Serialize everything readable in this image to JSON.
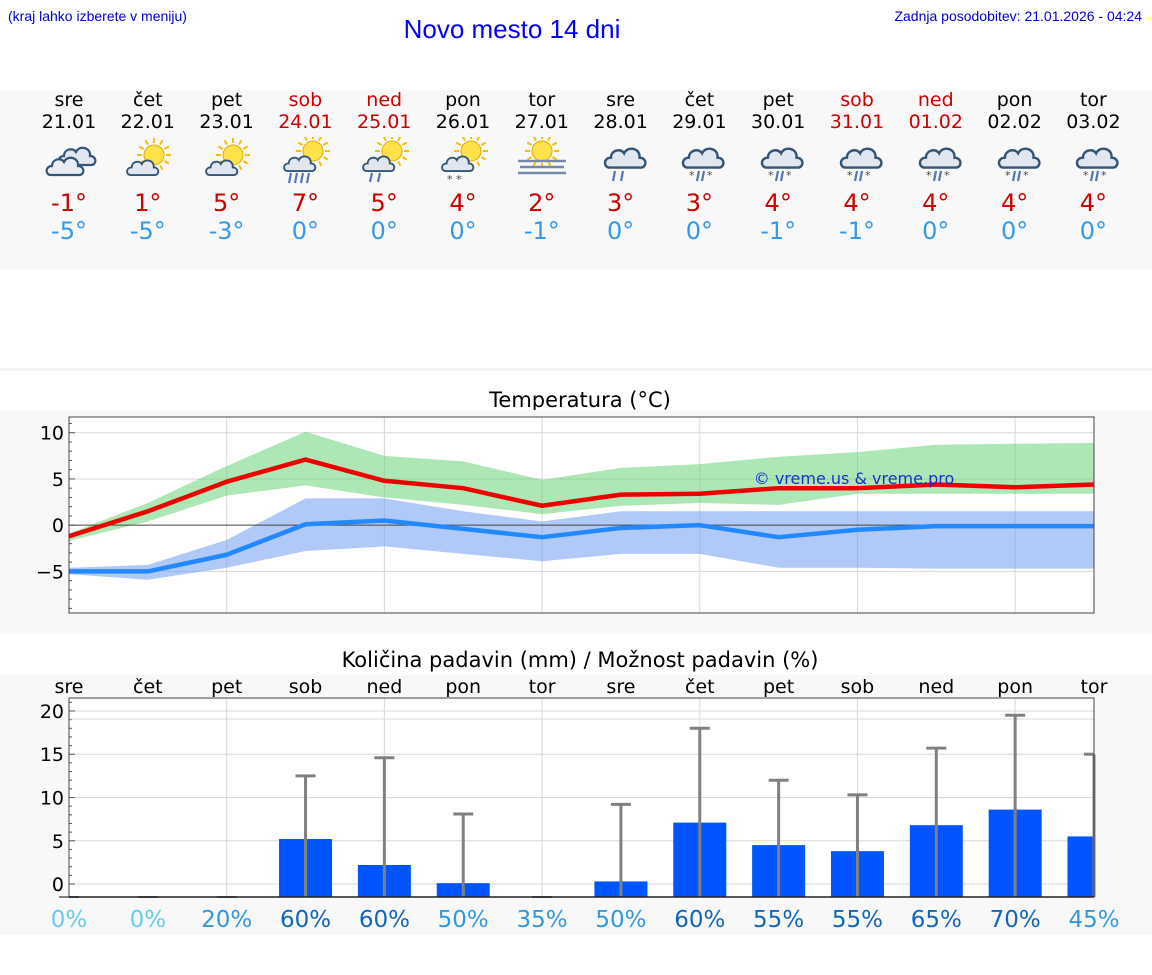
{
  "header": {
    "note": "(kraj lahko izberete v meniju)",
    "title": "Novo mesto 14 dni",
    "update": "Zadnja posodobitev: 21.01.2026 - 04:24"
  },
  "days": [
    {
      "name": "sre",
      "date": "21.01",
      "weekend": false,
      "icon": "cloudy",
      "tmax": "-1°",
      "tmin": "-5°"
    },
    {
      "name": "čet",
      "date": "22.01",
      "weekend": false,
      "icon": "partly-sunny",
      "tmax": "1°",
      "tmin": "-5°"
    },
    {
      "name": "pet",
      "date": "23.01",
      "weekend": false,
      "icon": "partly-sunny",
      "tmax": "5°",
      "tmin": "-3°"
    },
    {
      "name": "sob",
      "date": "24.01",
      "weekend": true,
      "icon": "sun-rain",
      "tmax": "7°",
      "tmin": "0°"
    },
    {
      "name": "ned",
      "date": "25.01",
      "weekend": true,
      "icon": "sun-light-rain",
      "tmax": "5°",
      "tmin": "0°"
    },
    {
      "name": "pon",
      "date": "26.01",
      "weekend": false,
      "icon": "sun-snow",
      "tmax": "4°",
      "tmin": "0°"
    },
    {
      "name": "tor",
      "date": "27.01",
      "weekend": false,
      "icon": "sun-fog",
      "tmax": "2°",
      "tmin": "-1°"
    },
    {
      "name": "sre",
      "date": "28.01",
      "weekend": false,
      "icon": "cloud-light-rain",
      "tmax": "3°",
      "tmin": "0°"
    },
    {
      "name": "čet",
      "date": "29.01",
      "weekend": false,
      "icon": "cloud-sleet",
      "tmax": "3°",
      "tmin": "0°"
    },
    {
      "name": "pet",
      "date": "30.01",
      "weekend": false,
      "icon": "cloud-sleet",
      "tmax": "4°",
      "tmin": "-1°"
    },
    {
      "name": "sob",
      "date": "31.01",
      "weekend": true,
      "icon": "cloud-sleet",
      "tmax": "4°",
      "tmin": "-1°"
    },
    {
      "name": "ned",
      "date": "01.02",
      "weekend": true,
      "icon": "cloud-sleet",
      "tmax": "4°",
      "tmin": "0°"
    },
    {
      "name": "pon",
      "date": "02.02",
      "weekend": false,
      "icon": "cloud-sleet",
      "tmax": "4°",
      "tmin": "0°"
    },
    {
      "name": "tor",
      "date": "03.02",
      "weekend": false,
      "icon": "cloud-sleet",
      "tmax": "4°",
      "tmin": "0°"
    }
  ],
  "chart_data": [
    {
      "type": "line",
      "title": "Temperatura (°C)",
      "watermark": "© vreme.us & vreme.pro",
      "ylim": [
        -9.5,
        11.7
      ],
      "yticks": [
        "10",
        "5",
        "0",
        "−5"
      ],
      "ytick_values": [
        10,
        5,
        0,
        -5
      ],
      "x": [
        0,
        1,
        2,
        3,
        4,
        5,
        6,
        7,
        8,
        9,
        10,
        11,
        12,
        13
      ],
      "series": [
        {
          "name": "max",
          "color": "#ee0000",
          "values": [
            -1.2,
            1.5,
            4.7,
            7.1,
            4.8,
            4.0,
            2.1,
            3.3,
            3.4,
            4.0,
            4.0,
            4.4,
            4.1,
            4.4
          ],
          "band_low": [
            -1.7,
            0.4,
            3.2,
            4.3,
            3.0,
            2.2,
            1.2,
            2.1,
            2.4,
            2.2,
            3.4,
            3.4,
            3.4,
            3.4
          ],
          "band_high": [
            -0.9,
            2.4,
            6.4,
            10.1,
            7.5,
            6.9,
            4.9,
            6.2,
            6.6,
            7.4,
            7.9,
            8.7,
            8.8,
            8.9
          ]
        },
        {
          "name": "min",
          "color": "#2288ff",
          "values": [
            -5.0,
            -5.0,
            -3.2,
            0.1,
            0.5,
            -0.4,
            -1.3,
            -0.3,
            0.0,
            -1.3,
            -0.5,
            -0.1,
            -0.1,
            -0.1
          ],
          "band_low": [
            -5.3,
            -5.9,
            -4.6,
            -2.8,
            -2.3,
            -3.1,
            -3.9,
            -3.1,
            -3.1,
            -4.6,
            -4.6,
            -4.7,
            -4.7,
            -4.7
          ],
          "band_high": [
            -4.6,
            -4.3,
            -1.6,
            2.9,
            2.9,
            1.5,
            0.4,
            1.5,
            1.5,
            1.5,
            1.5,
            1.5,
            1.5,
            1.5
          ]
        }
      ]
    },
    {
      "type": "bar",
      "title": "Količina padavin (mm) / Možnost padavin (%)",
      "ylim": [
        -1.5,
        21.5
      ],
      "yticks": [
        "20",
        "15",
        "10",
        "5",
        "0"
      ],
      "ytick_values": [
        20,
        15,
        10,
        5,
        0
      ],
      "categories": [
        "sre",
        "čet",
        "pet",
        "sob",
        "ned",
        "pon",
        "tor",
        "sre",
        "čet",
        "pet",
        "sob",
        "ned",
        "pon",
        "tor"
      ],
      "values": [
        0,
        0,
        0,
        5.2,
        2.2,
        0.1,
        0,
        0.3,
        7.1,
        4.5,
        3.8,
        6.8,
        8.6,
        5.5
      ],
      "error_high": [
        0,
        0.1,
        0.1,
        12.5,
        14.6,
        8.1,
        0.1,
        9.2,
        18.0,
        12.0,
        10.3,
        15.7,
        19.5,
        15.0
      ],
      "probabilities": [
        "0%",
        "0%",
        "20%",
        "60%",
        "60%",
        "50%",
        "35%",
        "50%",
        "60%",
        "55%",
        "55%",
        "65%",
        "70%",
        "45%"
      ],
      "probability_colors": [
        "#66ccee",
        "#66ccee",
        "#3399dd",
        "#1166bb",
        "#1166bb",
        "#3399dd",
        "#3399dd",
        "#3399dd",
        "#1166bb",
        "#1166bb",
        "#1166bb",
        "#1166bb",
        "#1166bb",
        "#3399dd"
      ]
    }
  ]
}
